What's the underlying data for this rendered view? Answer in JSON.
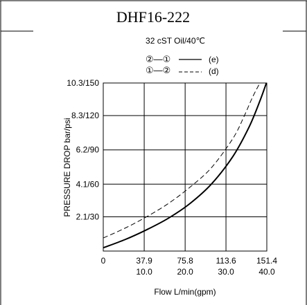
{
  "header": {
    "title": "DHF16-222",
    "subtitle": "32 cST Oil/40℃"
  },
  "legend": [
    {
      "flow": "②—①",
      "label": "(e)",
      "style": "solid"
    },
    {
      "flow": "①—②",
      "label": "(d)",
      "style": "dashed"
    }
  ],
  "chart_data": {
    "type": "line",
    "title": "DHF16-222",
    "subtitle": "32 cST Oil/40℃",
    "ylabel": "PRESSURE DROP bar/psi",
    "xlabel": "Flow L/min(gpm)",
    "x_ticks_lpm": [
      "0",
      "37.9",
      "75.8",
      "113.6",
      "151.4"
    ],
    "x_ticks_gpm": [
      "",
      "10.0",
      "20.0",
      "30.0",
      "40.0"
    ],
    "x_tick_values": [
      0,
      37.9,
      75.8,
      113.6,
      151.4
    ],
    "y_ticks": [
      "2.1/30",
      "4.1/60",
      "6.2/90",
      "8.3/120",
      "10.3/150"
    ],
    "y_tick_values": [
      2.1,
      4.1,
      6.2,
      8.3,
      10.3
    ],
    "xlim": [
      0,
      151.4
    ],
    "ylim": [
      0,
      10.3
    ],
    "grid": true,
    "legend_position": "top",
    "series": [
      {
        "name": "②—① (e)",
        "style": "solid",
        "x": [
          0,
          20,
          40,
          60,
          80,
          100,
          120,
          135,
          145,
          151
        ],
        "y": [
          0.2,
          0.7,
          1.3,
          2.0,
          2.9,
          4.1,
          5.8,
          7.6,
          9.2,
          10.3
        ]
      },
      {
        "name": "①—② (d)",
        "style": "dashed",
        "x": [
          0,
          20,
          40,
          60,
          80,
          100,
          120,
          130,
          138,
          145
        ],
        "y": [
          0.8,
          1.4,
          2.1,
          2.9,
          3.9,
          5.1,
          6.9,
          8.2,
          9.4,
          10.3
        ]
      }
    ]
  }
}
